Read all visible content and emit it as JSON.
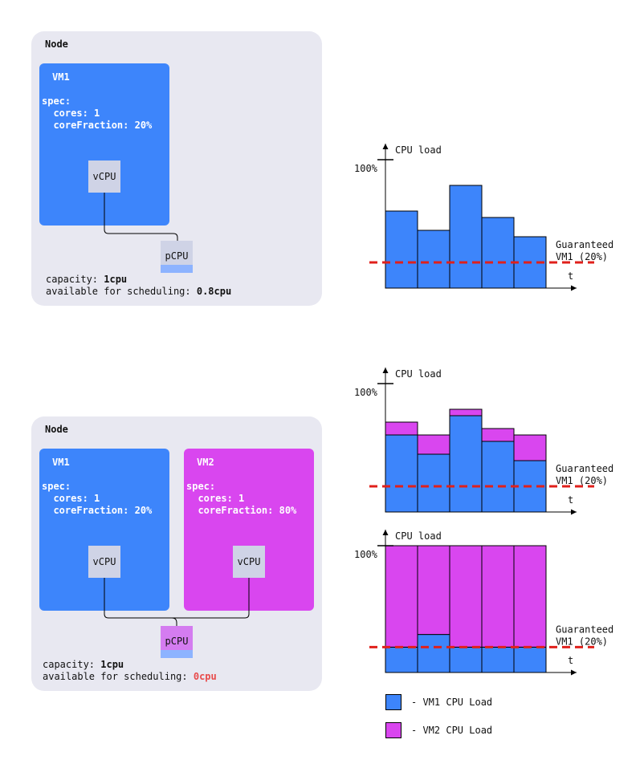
{
  "colors": {
    "vm1": "#3d85fb",
    "vm2": "#d946ef",
    "node_bg": "#e8e8f1",
    "guarantee": "#e0201b"
  },
  "top": {
    "node_label": "Node",
    "vm1": {
      "title": "VM1",
      "spec": "spec:\n  cores: 1\n  coreFraction: 20%",
      "vcpu": "vCPU"
    },
    "pcpu": "pCPU",
    "capacity_label": "capacity: ",
    "capacity_value": "1cpu",
    "avail_label": "available for scheduling: ",
    "avail_value": "0.8cpu"
  },
  "bottom": {
    "node_label": "Node",
    "vm1": {
      "title": "VM1",
      "spec": "spec:\n  cores: 1\n  coreFraction: 20%",
      "vcpu": "vCPU"
    },
    "vm2": {
      "title": "VM2",
      "spec": "spec:\n  cores: 1\n  coreFraction: 80%",
      "vcpu": "vCPU"
    },
    "pcpu": "pCPU",
    "capacity_label": "capacity: ",
    "capacity_value": "1cpu",
    "avail_label": "available for scheduling: ",
    "avail_value": "0cpu"
  },
  "chart_data": [
    {
      "type": "bar",
      "ylabel": "CPU load",
      "xlabel": "t",
      "ytick": "100%",
      "guarantee_label": [
        "Guaranteed",
        "VM1 (20%)"
      ],
      "guarantee_value": 20,
      "ylim": [
        0,
        100
      ],
      "series": [
        {
          "name": "VM1 CPU Load",
          "values": [
            60,
            45,
            80,
            55,
            40
          ]
        }
      ]
    },
    {
      "type": "bar",
      "stacked": true,
      "ylabel": "CPU load",
      "xlabel": "t",
      "ytick": "100%",
      "guarantee_label": [
        "Guaranteed",
        "VM1 (20%)"
      ],
      "guarantee_value": 20,
      "ylim": [
        0,
        100
      ],
      "series": [
        {
          "name": "VM1 CPU Load",
          "values": [
            60,
            45,
            75,
            55,
            40
          ]
        },
        {
          "name": "VM2 CPU Load",
          "values": [
            10,
            15,
            5,
            10,
            20
          ]
        }
      ]
    },
    {
      "type": "bar",
      "stacked": true,
      "ylabel": "CPU load",
      "xlabel": "t",
      "ytick": "100%",
      "guarantee_label": [
        "Guaranteed",
        "VM1 (20%)"
      ],
      "guarantee_value": 20,
      "ylim": [
        0,
        100
      ],
      "series": [
        {
          "name": "VM1 CPU Load",
          "values": [
            20,
            30,
            20,
            20,
            20
          ]
        },
        {
          "name": "VM2 CPU Load",
          "values": [
            80,
            70,
            80,
            80,
            80
          ]
        }
      ]
    }
  ],
  "legend": [
    {
      "label": "- VM1 CPU Load",
      "color": "#3d85fb"
    },
    {
      "label": "- VM2 CPU Load",
      "color": "#d946ef"
    }
  ]
}
